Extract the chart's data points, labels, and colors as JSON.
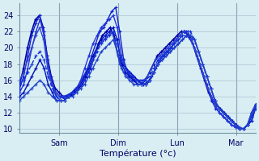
{
  "title": "",
  "xlabel": "Température (°c)",
  "ylim": [
    9.5,
    25.5
  ],
  "xlim": [
    0,
    96
  ],
  "yticks": [
    10,
    12,
    14,
    16,
    18,
    20,
    22,
    24
  ],
  "xtick_positions": [
    16,
    40,
    64,
    88
  ],
  "xtick_labels": [
    "Sam",
    "Dim",
    "Lun",
    "Mar"
  ],
  "bg_color": "#d8eef2",
  "grid_color": "#a0b8c8",
  "line_color_dark": "#0000cc",
  "line_color_mid": "#2244bb",
  "line_color_light": "#4466dd",
  "marker": "+",
  "series": [
    [
      15.5,
      17.5,
      20.0,
      22.0,
      23.5,
      24.0,
      22.5,
      19.0,
      16.5,
      15.0,
      14.5,
      14.0,
      14.0,
      14.2,
      14.5,
      15.0,
      15.5,
      16.5,
      17.5,
      19.0,
      20.5,
      21.5,
      22.0,
      22.5,
      21.5,
      19.0,
      18.0,
      17.5,
      17.0,
      16.5,
      16.0,
      15.5,
      16.0,
      17.0,
      18.0,
      19.0,
      19.5,
      20.0,
      20.5,
      21.0,
      21.5,
      22.0,
      22.0,
      21.5,
      20.5,
      19.0,
      17.5,
      16.0,
      14.5,
      13.5,
      13.0,
      12.5,
      12.0,
      11.5,
      11.0,
      10.5,
      10.0,
      10.0,
      10.5,
      11.0,
      13.0
    ],
    [
      15.0,
      16.5,
      19.0,
      21.5,
      23.0,
      24.0,
      22.0,
      18.5,
      16.0,
      14.5,
      14.0,
      13.8,
      14.0,
      14.3,
      14.8,
      15.5,
      16.5,
      17.5,
      19.0,
      20.5,
      22.0,
      22.5,
      23.5,
      24.5,
      25.0,
      22.0,
      18.5,
      17.0,
      16.5,
      16.0,
      15.8,
      15.5,
      15.8,
      16.5,
      17.5,
      18.5,
      19.0,
      19.5,
      20.0,
      21.0,
      21.5,
      22.0,
      22.0,
      21.0,
      19.5,
      18.0,
      16.5,
      15.0,
      13.5,
      12.5,
      12.0,
      11.5,
      11.0,
      10.5,
      10.2,
      10.0,
      10.0,
      10.5,
      11.0,
      12.5
    ],
    [
      14.5,
      15.5,
      17.5,
      20.0,
      22.0,
      23.5,
      21.5,
      17.5,
      15.5,
      14.0,
      13.5,
      13.5,
      14.0,
      14.5,
      15.0,
      16.0,
      17.5,
      19.0,
      20.5,
      21.5,
      22.5,
      23.0,
      23.5,
      24.0,
      22.5,
      19.0,
      17.5,
      16.5,
      16.0,
      15.5,
      15.5,
      15.5,
      16.0,
      17.0,
      18.0,
      19.0,
      19.5,
      20.0,
      20.5,
      21.0,
      21.5,
      21.5,
      21.0,
      20.0,
      18.5,
      17.0,
      15.5,
      14.0,
      13.0,
      12.0,
      11.5,
      11.0,
      10.5,
      10.2,
      10.0,
      10.0,
      10.5,
      11.5,
      12.5
    ],
    [
      16.0,
      17.0,
      18.5,
      20.0,
      21.5,
      22.5,
      21.0,
      17.5,
      15.5,
      14.5,
      14.0,
      14.0,
      14.2,
      14.5,
      15.0,
      15.5,
      16.0,
      17.0,
      18.0,
      19.5,
      20.5,
      21.0,
      21.5,
      22.0,
      20.5,
      18.0,
      17.0,
      16.5,
      16.0,
      16.0,
      16.0,
      16.0,
      16.5,
      17.5,
      18.5,
      19.0,
      19.5,
      20.0,
      20.5,
      21.0,
      21.5,
      22.0,
      22.0,
      21.0,
      19.5,
      18.0,
      16.5,
      15.0,
      14.0,
      13.0,
      12.5,
      12.0,
      11.5,
      11.0,
      10.5,
      10.2,
      10.0,
      10.5,
      11.5,
      13.0
    ],
    [
      14.0,
      14.5,
      15.5,
      16.5,
      17.5,
      18.5,
      17.5,
      15.5,
      14.5,
      13.5,
      13.5,
      13.5,
      14.0,
      14.5,
      15.0,
      15.5,
      16.5,
      17.5,
      19.0,
      20.0,
      21.0,
      21.5,
      22.0,
      22.5,
      21.0,
      18.0,
      17.0,
      16.5,
      16.0,
      15.5,
      15.5,
      15.5,
      16.0,
      17.0,
      18.0,
      18.5,
      19.0,
      19.5,
      20.0,
      20.5,
      21.0,
      21.5,
      21.5,
      21.0,
      19.5,
      18.0,
      16.5,
      15.0,
      13.5,
      12.5,
      12.0,
      11.5,
      11.0,
      10.5,
      10.0,
      10.0,
      10.5,
      12.0,
      13.0
    ],
    [
      15.5,
      16.0,
      17.0,
      18.0,
      19.0,
      19.5,
      18.5,
      16.5,
      15.0,
      14.0,
      14.0,
      14.0,
      14.2,
      14.5,
      15.0,
      15.5,
      16.0,
      17.0,
      18.5,
      19.5,
      20.5,
      21.0,
      21.5,
      22.0,
      20.5,
      18.5,
      17.5,
      17.0,
      16.5,
      16.0,
      16.0,
      16.0,
      16.5,
      17.5,
      18.5,
      19.0,
      19.5,
      20.0,
      20.5,
      21.0,
      21.5,
      22.0,
      22.0,
      21.0,
      19.5,
      18.0,
      16.5,
      15.0,
      13.5,
      12.5,
      12.0,
      11.5,
      11.0,
      10.5,
      10.0,
      10.0,
      10.5,
      11.5,
      13.0
    ],
    [
      13.5,
      14.0,
      14.5,
      15.0,
      15.5,
      16.0,
      15.5,
      14.5,
      14.0,
      13.5,
      13.5,
      13.5,
      14.0,
      14.0,
      14.5,
      15.0,
      15.5,
      16.5,
      17.5,
      18.5,
      19.5,
      20.0,
      20.5,
      21.0,
      19.5,
      17.5,
      16.5,
      16.0,
      15.5,
      15.5,
      15.5,
      15.5,
      16.0,
      17.0,
      18.0,
      18.5,
      19.0,
      19.5,
      20.0,
      20.5,
      21.0,
      21.5,
      21.5,
      21.0,
      19.5,
      18.0,
      16.5,
      15.0,
      13.5,
      12.5,
      12.0,
      11.5,
      11.0,
      10.5,
      10.0,
      10.0,
      10.5,
      12.0,
      13.0
    ]
  ],
  "line_colors": [
    "#0000aa",
    "#1122cc",
    "#2233dd",
    "#3344cc",
    "#0011bb",
    "#1133dd",
    "#2244cc"
  ],
  "line_widths": [
    1.2,
    1.0,
    1.0,
    1.0,
    1.0,
    1.0,
    1.0
  ],
  "line_styles": [
    "-",
    "-",
    "-",
    "-",
    "-",
    "--",
    "-"
  ]
}
